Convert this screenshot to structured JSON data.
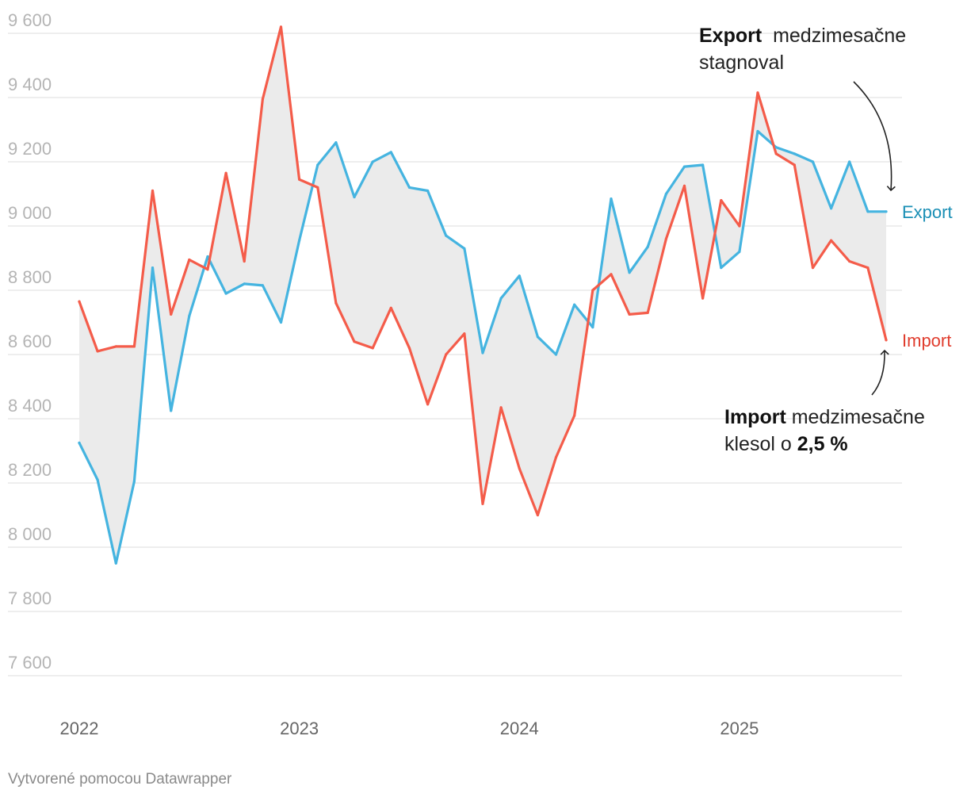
{
  "chart_data": {
    "type": "line",
    "title": "",
    "xlabel": "",
    "ylabel": "",
    "ylim": [
      7600,
      9600
    ],
    "yticks": [
      7600,
      7800,
      8000,
      8200,
      8400,
      8600,
      8800,
      9000,
      9200,
      9400,
      9600
    ],
    "ytick_labels": [
      "7 600",
      "7 800",
      "8 000",
      "8 200",
      "8 400",
      "8 600",
      "8 800",
      "9 000",
      "9 200",
      "9 400",
      "9 600"
    ],
    "xticks": [
      {
        "label": "2022",
        "index": 0
      },
      {
        "label": "2023",
        "index": 12
      },
      {
        "label": "2024",
        "index": 24
      },
      {
        "label": "2025",
        "index": 36
      }
    ],
    "shade_between_series": true,
    "series": [
      {
        "name": "Export",
        "color": "#45b4e0",
        "label_color": "#1a8fb5",
        "values": [
          8325,
          8210,
          7950,
          8205,
          8870,
          8425,
          8720,
          8905,
          8790,
          8820,
          8815,
          8700,
          8955,
          9190,
          9260,
          9090,
          9200,
          9230,
          9120,
          9110,
          8970,
          8930,
          8605,
          8775,
          8845,
          8655,
          8600,
          8755,
          8685,
          9085,
          8855,
          8935,
          9100,
          9185,
          9190,
          8870,
          8920,
          9295,
          9245,
          9225,
          9200,
          9055,
          9200,
          9045,
          9045
        ]
      },
      {
        "name": "Import",
        "color": "#f45c4a",
        "label_color": "#e03c2d",
        "values": [
          8765,
          8610,
          8625,
          8625,
          9110,
          8725,
          8895,
          8865,
          9165,
          8890,
          9395,
          9620,
          9145,
          9120,
          8760,
          8640,
          8620,
          8745,
          8620,
          8445,
          8600,
          8665,
          8135,
          8435,
          8245,
          8100,
          8280,
          8410,
          8800,
          8850,
          8725,
          8730,
          8960,
          9125,
          8775,
          9080,
          9000,
          9415,
          9225,
          9190,
          8870,
          8955,
          8890,
          8870,
          8645
        ]
      }
    ]
  },
  "annotations": {
    "export": {
      "bold": "Export",
      "text1": "  medzimesačne",
      "text2": "stagnoval"
    },
    "import": {
      "bold": "Import",
      "text1": " medzimesačne",
      "text2": "klesol o ",
      "bold2": "2,5 %"
    }
  },
  "footer": "Vytvorené pomocou Datawrapper"
}
